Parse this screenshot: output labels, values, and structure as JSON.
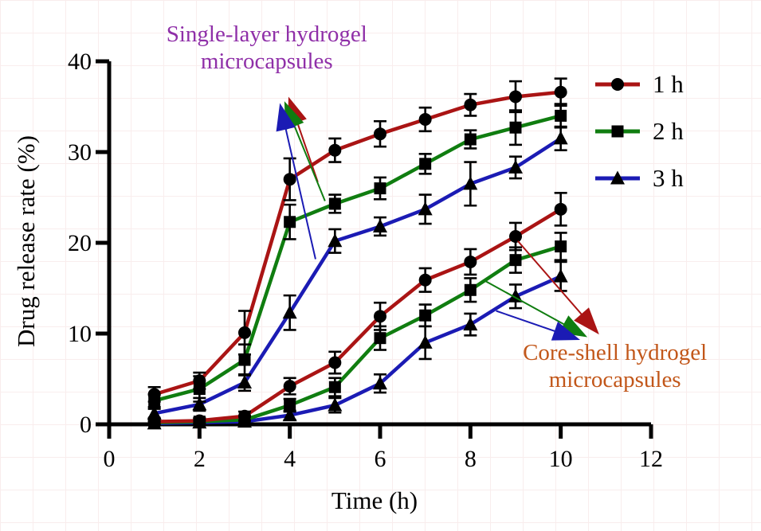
{
  "figure": {
    "background": "#ffffff",
    "grid_color": "#f9eded",
    "text_color": "#000000"
  },
  "chart_data": {
    "type": "line",
    "title": "",
    "xlabel": "Time (h)",
    "ylabel": "Drug release rate (%)",
    "xlim": [
      0,
      12
    ],
    "ylim": [
      0,
      40
    ],
    "x_ticks": [
      "0",
      "2",
      "4",
      "6",
      "8",
      "10",
      "12"
    ],
    "y_ticks": [
      "0",
      "10",
      "20",
      "30",
      "40"
    ],
    "grid": false,
    "x": [
      1,
      2,
      3,
      4,
      5,
      6,
      7,
      8,
      9,
      10
    ],
    "legend": {
      "position": "top-right",
      "entries": [
        "1 h",
        "2 h",
        "3 h"
      ]
    },
    "series": [
      {
        "name": "1 h",
        "group": "Single-layer hydrogel microcapsules",
        "color": "#aa1414",
        "marker": "circle",
        "values": [
          3.3,
          4.8,
          10.1,
          27.0,
          30.2,
          32.0,
          33.6,
          35.2,
          36.1,
          36.6
        ],
        "errors": [
          0.8,
          0.9,
          2.4,
          2.3,
          1.3,
          1.4,
          1.3,
          1.2,
          1.7,
          1.5
        ]
      },
      {
        "name": "2 h",
        "group": "Single-layer hydrogel microcapsules",
        "color": "#107d10",
        "marker": "square",
        "values": [
          2.6,
          3.9,
          7.1,
          22.3,
          24.3,
          26.0,
          28.7,
          31.4,
          32.7,
          34.0
        ],
        "errors": [
          0.7,
          1.4,
          1.7,
          1.9,
          1.0,
          1.2,
          1.1,
          1.0,
          1.9,
          1.3
        ]
      },
      {
        "name": "3 h",
        "group": "Single-layer hydrogel microcapsules",
        "color": "#1b1bb4",
        "marker": "triangle",
        "values": [
          1.2,
          2.2,
          4.6,
          12.3,
          20.2,
          21.8,
          23.7,
          26.5,
          28.3,
          31.5
        ],
        "errors": [
          0.5,
          0.7,
          0.9,
          1.9,
          1.3,
          1.0,
          1.6,
          2.4,
          1.2,
          1.3
        ]
      },
      {
        "name": "1 h",
        "group": "Core-shell hydrogel microcapsules",
        "color": "#aa1414",
        "marker": "circle",
        "values": [
          0.3,
          0.4,
          0.9,
          4.2,
          6.8,
          11.9,
          15.9,
          17.9,
          20.7,
          23.7
        ],
        "errors": [
          0.3,
          0.3,
          0.5,
          0.9,
          1.2,
          1.5,
          1.3,
          1.4,
          1.5,
          1.8
        ]
      },
      {
        "name": "2 h",
        "group": "Core-shell hydrogel microcapsules",
        "color": "#107d10",
        "marker": "square",
        "values": [
          0.2,
          0.3,
          0.5,
          2.1,
          4.1,
          9.5,
          12.0,
          14.8,
          18.1,
          19.6
        ],
        "errors": [
          0.2,
          0.3,
          0.4,
          0.7,
          1.0,
          1.3,
          1.2,
          1.3,
          1.4,
          1.5
        ]
      },
      {
        "name": "3 h",
        "group": "Core-shell hydrogel microcapsules",
        "color": "#1b1bb4",
        "marker": "triangle",
        "values": [
          0.1,
          0.2,
          0.3,
          1.0,
          2.1,
          4.5,
          9.0,
          11.0,
          14.1,
          16.3
        ],
        "errors": [
          0.2,
          0.2,
          0.3,
          0.5,
          0.8,
          1.0,
          1.8,
          1.2,
          1.3,
          1.6
        ]
      }
    ],
    "annotations": [
      {
        "id": "single-layer",
        "lines": [
          "Single-layer hydrogel",
          "microcapsules"
        ],
        "color": "#8f2fa8",
        "label_pos": [
          3.49,
          41.4
        ],
        "arrows": [
          {
            "color": "#aa1414",
            "from": [
              4.62,
              26.7
            ],
            "tip": [
              3.97,
              36.1
            ]
          },
          {
            "color": "#107d10",
            "from": [
              4.78,
              24.6
            ],
            "tip": [
              3.88,
              35.6
            ]
          },
          {
            "color": "#1b1bb4",
            "from": [
              4.57,
              18.2
            ],
            "tip": [
              3.78,
              35.4
            ]
          }
        ]
      },
      {
        "id": "core-shell",
        "lines": [
          "Core-shell hydrogel",
          "microcapsules"
        ],
        "color": "#c2571a",
        "label_pos": [
          11.2,
          6.35
        ],
        "arrows": [
          {
            "color": "#107d10",
            "from": [
              8.29,
              15.9
            ],
            "tip": [
              10.59,
              9.6
            ]
          },
          {
            "color": "#1b1bb4",
            "from": [
              8.57,
              12.5
            ],
            "tip": [
              10.43,
              9.3
            ]
          },
          {
            "color": "#aa1414",
            "from": [
              9.05,
              20.2
            ],
            "tip": [
              10.85,
              9.9
            ]
          }
        ]
      }
    ]
  }
}
